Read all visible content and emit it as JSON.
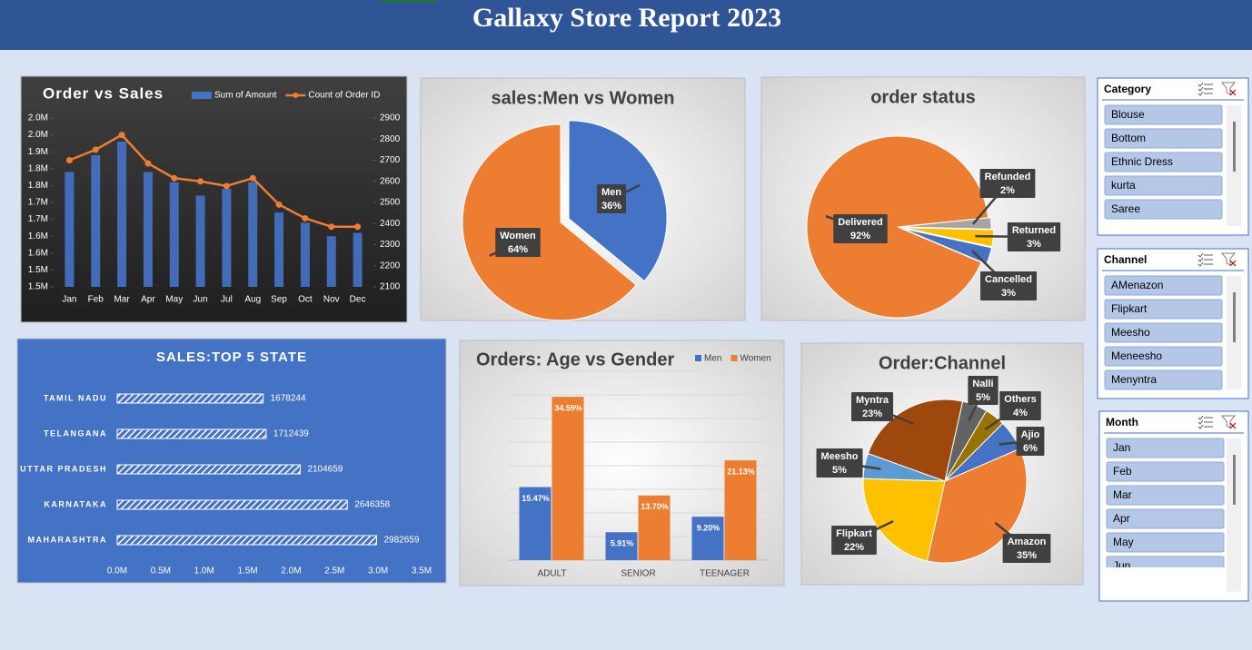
{
  "title": "Gallaxy Store Report 2023",
  "chart_data": [
    {
      "type": "combo",
      "title": "Order vs Sales",
      "categories": [
        "Jan",
        "Feb",
        "Mar",
        "Apr",
        "May",
        "Jun",
        "Jul",
        "Aug",
        "Sep",
        "Oct",
        "Nov",
        "Dec"
      ],
      "series": [
        {
          "name": "Sum of Amount",
          "type": "bar",
          "color": "#4472c4",
          "values": [
            1840000,
            1890000,
            1930000,
            1840000,
            1810000,
            1770000,
            1790000,
            1810000,
            1720000,
            1690000,
            1650000,
            1660000
          ]
        },
        {
          "name": "Count of Order ID",
          "type": "line",
          "color": "#ed7d31",
          "axis": "y2",
          "values": [
            2700,
            2750,
            2820,
            2685,
            2615,
            2600,
            2578,
            2615,
            2490,
            2425,
            2385,
            2385
          ]
        }
      ],
      "ylim": [
        1500000,
        2000000
      ],
      "yticks": [
        {
          "value": 1500000,
          "label": "1.5M"
        },
        {
          "value": 1550000,
          "label": "1.5M"
        },
        {
          "value": 1600000,
          "label": "1.6M"
        },
        {
          "value": 1650000,
          "label": "1.6M"
        },
        {
          "value": 1700000,
          "label": "1.7M"
        },
        {
          "value": 1750000,
          "label": "1.7M"
        },
        {
          "value": 1800000,
          "label": "1.8M"
        },
        {
          "value": 1850000,
          "label": "1.8M"
        },
        {
          "value": 1900000,
          "label": "1.9M"
        },
        {
          "value": 1950000,
          "label": "2.0M"
        },
        {
          "value": 2000000,
          "label": "2.0M"
        }
      ],
      "y2lim": [
        2100,
        2900
      ],
      "y2ticks": [
        2100,
        2200,
        2300,
        2400,
        2500,
        2600,
        2700,
        2800,
        2900
      ],
      "legend": "top-right"
    },
    {
      "type": "pie",
      "title": "sales:Men vs Women",
      "categories": [
        "Men",
        "Women"
      ],
      "values": [
        36,
        64
      ],
      "value_labels": [
        "36%",
        "64%"
      ],
      "colors": [
        "#4472c4",
        "#ed7d31"
      ]
    },
    {
      "type": "pie",
      "title": "order status",
      "categories": [
        "Delivered",
        "Refunded",
        "Returned",
        "Cancelled"
      ],
      "values": [
        92,
        2,
        3,
        3
      ],
      "value_labels": [
        "92%",
        "2%",
        "3%",
        "3%"
      ],
      "colors": [
        "#ed7d31",
        "#a5a5a5",
        "#ffc000",
        "#4472c4"
      ]
    },
    {
      "type": "hbar",
      "title": "SALES:TOP 5 STATE",
      "categories": [
        "TAMIL NADU",
        "TELANGANA",
        "UTTAR PRADESH",
        "KARNATAKA",
        "MAHARASHTRA"
      ],
      "values": [
        1678244,
        1712439,
        2104659,
        2646358,
        2982659
      ],
      "color": "#ffffff",
      "xlim": [
        0,
        3500000
      ],
      "xticks": [
        {
          "value": 0,
          "label": "0.0M"
        },
        {
          "value": 500000,
          "label": "0.5M"
        },
        {
          "value": 1000000,
          "label": "1.0M"
        },
        {
          "value": 1500000,
          "label": "1.5M"
        },
        {
          "value": 2000000,
          "label": "2.0M"
        },
        {
          "value": 2500000,
          "label": "2.5M"
        },
        {
          "value": 3000000,
          "label": "3.0M"
        },
        {
          "value": 3500000,
          "label": "3.5M"
        }
      ]
    },
    {
      "type": "column",
      "title": "Orders: Age vs Gender",
      "categories": [
        "ADULT",
        "SENIOR",
        "TEENAGER"
      ],
      "series": [
        {
          "name": "Men",
          "color": "#4472c4",
          "values": [
            15.47,
            5.91,
            9.2
          ],
          "value_labels": [
            "15.47%",
            "5.91%",
            "9.20%"
          ]
        },
        {
          "name": "Women",
          "color": "#ed7d31",
          "values": [
            34.59,
            13.7,
            21.13
          ],
          "value_labels": [
            "34.59%",
            "13.70%",
            "21.13%"
          ]
        }
      ],
      "ylim": [
        0,
        40
      ],
      "yticks": [
        0,
        5,
        10,
        15,
        20,
        25,
        30,
        35,
        40
      ],
      "grid": true,
      "legend": "top-right"
    },
    {
      "type": "pie",
      "title": "Order:Channel",
      "categories": [
        "Ajio",
        "Amazon",
        "Flipkart",
        "Meesho",
        "Myntra",
        "Nalli",
        "Others"
      ],
      "values": [
        6,
        35,
        22,
        5,
        23,
        5,
        4
      ],
      "value_labels": [
        "6%",
        "35%",
        "22%",
        "5%",
        "23%",
        "5%",
        "4%"
      ],
      "colors": [
        "#4472c4",
        "#ed7d31",
        "#ffc000",
        "#5b9bd5",
        "#9e480e",
        "#636363",
        "#997300"
      ]
    }
  ],
  "slicers": [
    {
      "title": "Category",
      "items": [
        "Blouse",
        "Bottom",
        "Ethnic Dress",
        "kurta",
        "Saree"
      ]
    },
    {
      "title": "Channel",
      "items": [
        "AMenazon",
        "Flipkart",
        "Meesho",
        "Meneesho",
        "Menyntra"
      ]
    },
    {
      "title": "Month",
      "items": [
        "Jan",
        "Feb",
        "Mar",
        "Apr",
        "May",
        "Jun"
      ]
    }
  ]
}
